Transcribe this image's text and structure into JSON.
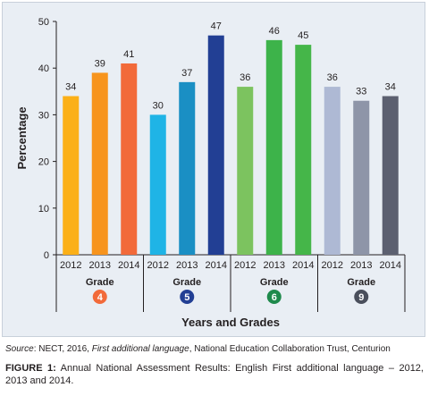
{
  "chart_data": {
    "type": "bar",
    "ylabel": "Percentage",
    "xlabel": "Years and Grades",
    "ylim": [
      0,
      50
    ],
    "yticks": [
      0,
      10,
      20,
      30,
      40,
      50
    ],
    "group_word": "Grade",
    "groups": [
      {
        "grade": "4",
        "badge_color": "#f26a3a",
        "categories": [
          "2012",
          "2013",
          "2014"
        ],
        "values": [
          34,
          39,
          41
        ],
        "colors": [
          "#fbb018",
          "#f7941d",
          "#f26a3a"
        ]
      },
      {
        "grade": "5",
        "badge_color": "#223f94",
        "categories": [
          "2012",
          "2013",
          "2014"
        ],
        "values": [
          30,
          37,
          47
        ],
        "colors": [
          "#1fb4e6",
          "#1a8fc4",
          "#223f94"
        ]
      },
      {
        "grade": "6",
        "badge_color": "#1f8a4c",
        "categories": [
          "2012",
          "2013",
          "2014"
        ],
        "values": [
          36,
          46,
          45
        ],
        "colors": [
          "#7cc35f",
          "#3db34a",
          "#45b649"
        ]
      },
      {
        "grade": "9",
        "badge_color": "#4a4f5c",
        "categories": [
          "2012",
          "2013",
          "2014"
        ],
        "values": [
          36,
          33,
          34
        ],
        "colors": [
          "#aeb9d4",
          "#8e95a8",
          "#5c6070"
        ]
      }
    ],
    "grid": false,
    "legend": "none"
  },
  "source": {
    "label": "Source",
    "text_before": ": NECT, 2016, ",
    "title": "First additional language",
    "text_after": ", National Education Collaboration Trust, Centurion"
  },
  "caption": {
    "label": "FIGURE 1:",
    "text": " Annual National Assessment Results: English First additional language – 2012, 2013 and 2014."
  }
}
